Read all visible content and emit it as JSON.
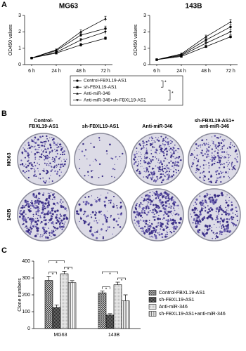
{
  "panels": [
    "A",
    "B",
    "C"
  ],
  "chart_data": [
    {
      "type": "line",
      "title": "MG63",
      "y_label": "OD450 values",
      "categories": [
        "6 h",
        "24 h",
        "48 h",
        "72 h"
      ],
      "ylim": [
        0,
        3
      ],
      "yticks": [
        0,
        1,
        2,
        3
      ],
      "series": [
        {
          "name": "Control-FBXL19-AS1",
          "marker": "circle",
          "color": "#000000",
          "values": [
            0.4,
            0.85,
            1.8,
            2.2
          ],
          "errors": [
            0.03,
            0.05,
            0.12,
            0.15
          ]
        },
        {
          "name": "sh-FBXL19-AS1",
          "marker": "square",
          "color": "#000000",
          "values": [
            0.4,
            0.7,
            1.2,
            1.6
          ],
          "errors": [
            0.03,
            0.05,
            0.1,
            0.1
          ]
        },
        {
          "name": "Anti-miR-346",
          "marker": "triangle",
          "color": "#000000",
          "values": [
            0.4,
            0.9,
            2.0,
            2.8
          ],
          "errors": [
            0.03,
            0.05,
            0.12,
            0.15
          ]
        },
        {
          "name": "Anti-miR-346+sh-FBXL19-AS1",
          "marker": "triangle-down",
          "color": "#000000",
          "values": [
            0.4,
            0.75,
            1.5,
            2.0
          ],
          "errors": [
            0.03,
            0.05,
            0.1,
            0.15
          ]
        }
      ],
      "significance": [
        {
          "between": [
            0,
            1
          ],
          "label": "*"
        },
        {
          "between": [
            1,
            3
          ],
          "label": "*"
        }
      ]
    },
    {
      "type": "line",
      "title": "143B",
      "y_label": "OD450 values",
      "categories": [
        "6 h",
        "24 h",
        "48 h",
        "72 h"
      ],
      "ylim": [
        0,
        3
      ],
      "yticks": [
        0,
        1,
        2,
        3
      ],
      "series": [
        {
          "marker": "circle",
          "color": "#000000",
          "values": [
            0.3,
            0.6,
            1.5,
            2.3
          ],
          "errors": [
            0.02,
            0.05,
            0.1,
            0.15
          ]
        },
        {
          "marker": "square",
          "color": "#000000",
          "values": [
            0.3,
            0.5,
            1.1,
            1.7
          ],
          "errors": [
            0.02,
            0.04,
            0.08,
            0.12
          ]
        },
        {
          "marker": "triangle",
          "color": "#000000",
          "values": [
            0.3,
            0.65,
            1.7,
            2.6
          ],
          "errors": [
            0.02,
            0.05,
            0.1,
            0.15
          ]
        },
        {
          "marker": "triangle-down",
          "color": "#000000",
          "values": [
            0.3,
            0.55,
            1.3,
            2.0
          ],
          "errors": [
            0.02,
            0.04,
            0.1,
            0.15
          ]
        }
      ]
    },
    {
      "type": "bar",
      "y_label": "Clone numbers",
      "categories": [
        "MG63",
        "143B"
      ],
      "ylim": [
        0,
        400
      ],
      "yticks": [
        0,
        100,
        200,
        300,
        400
      ],
      "series": [
        {
          "name": "Control-FBXL19-AS1",
          "fill": "crosshatch",
          "values": [
            285,
            212
          ],
          "errors": [
            25,
            10
          ]
        },
        {
          "name": "sh-FBXL19-AS1",
          "fill": "checker",
          "values": [
            125,
            80
          ],
          "errors": [
            15,
            8
          ]
        },
        {
          "name": "Anti-miR-346",
          "fill": "light",
          "values": [
            325,
            260
          ],
          "errors": [
            15,
            15
          ]
        },
        {
          "name": "sh-FBXL19-AS1+anti-miR-346",
          "fill": "vertical",
          "values": [
            272,
            165
          ],
          "errors": [
            12,
            35
          ]
        }
      ],
      "significance": [
        {
          "category": 0,
          "between": [
            0,
            2
          ],
          "label": "*"
        },
        {
          "category": 0,
          "between": [
            0,
            1
          ],
          "label": "*"
        },
        {
          "category": 0,
          "between": [
            2,
            3
          ],
          "label": "*"
        },
        {
          "category": 1,
          "between": [
            0,
            2
          ],
          "label": "*"
        },
        {
          "category": 1,
          "between": [
            0,
            1
          ],
          "label": "*"
        },
        {
          "category": 1,
          "between": [
            2,
            3
          ],
          "label": "*"
        }
      ]
    }
  ],
  "plates": {
    "columns": [
      [
        "Control-",
        "FBXL19-AS1"
      ],
      [
        "sh-FBXL19-AS1"
      ],
      [
        "Anti-miR-346"
      ],
      [
        "sh-FBXL19-AS1+",
        "anti-miR-346"
      ]
    ],
    "rows": [
      "MG63",
      "143B"
    ]
  }
}
